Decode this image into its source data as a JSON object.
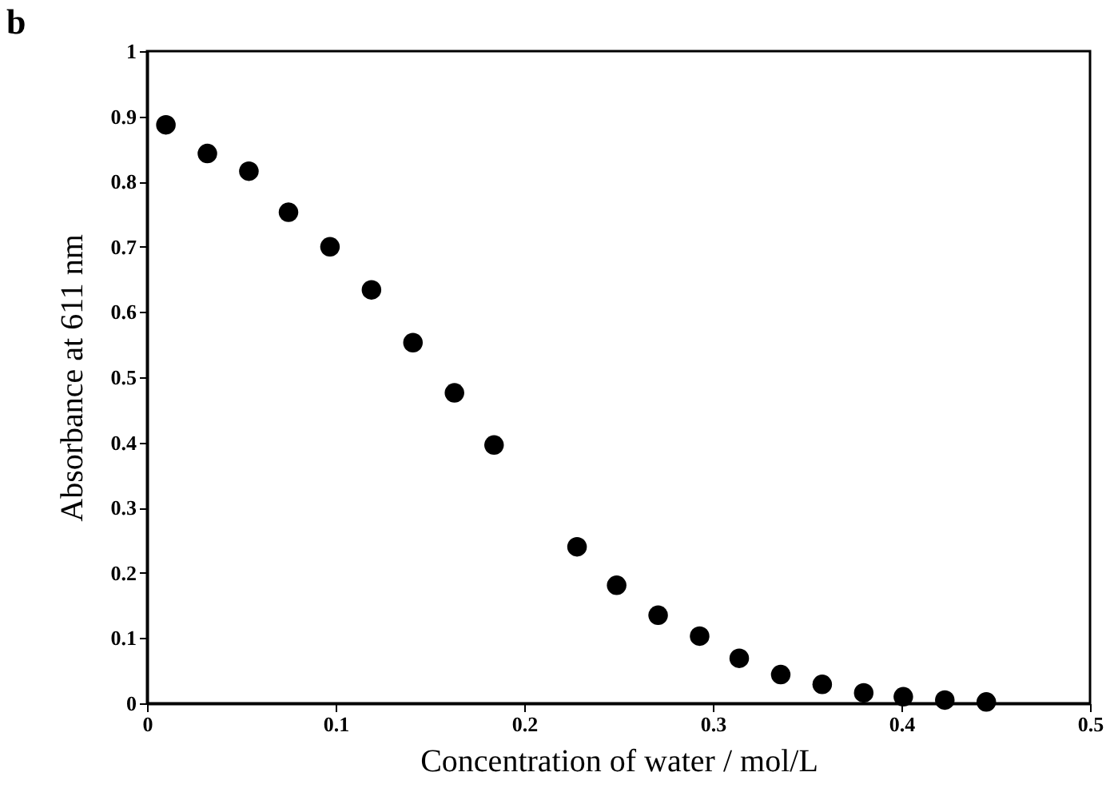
{
  "chart_data": {
    "type": "scatter",
    "xlabel": "Concentration of water / mol/L",
    "ylabel": "Absorbance at 611 nm",
    "annotations": [
      "b"
    ],
    "x": [
      0.01,
      0.032,
      0.054,
      0.075,
      0.097,
      0.119,
      0.141,
      0.163,
      0.184,
      0.228,
      0.249,
      0.271,
      0.293,
      0.314,
      0.336,
      0.358,
      0.38,
      0.401,
      0.423,
      0.445
    ],
    "series": [
      {
        "color": "#000000",
        "values": [
          0.887,
          0.843,
          0.816,
          0.753,
          0.7,
          0.634,
          0.553,
          0.476,
          0.396,
          0.24,
          0.181,
          0.135,
          0.103,
          0.069,
          0.044,
          0.029,
          0.016,
          0.01,
          0.005,
          0.002
        ]
      }
    ],
    "xlim": [
      0,
      0.5
    ],
    "xticks": [
      0,
      0.1,
      0.2,
      0.3,
      0.4,
      0.5
    ],
    "ylim": [
      0,
      1
    ],
    "yticks": [
      0,
      0.1,
      0.2,
      0.3,
      0.4,
      0.5,
      0.6,
      0.7,
      0.8,
      0.9,
      1
    ],
    "grid": false,
    "marker": "circle"
  }
}
